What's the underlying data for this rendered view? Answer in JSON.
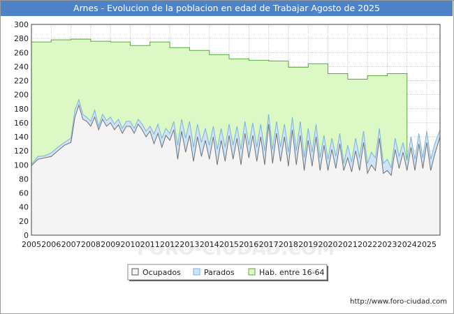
{
  "header": {
    "title": "Arnes - Evolucion de la poblacion en edad de Trabajar Agosto de 2025"
  },
  "footer": {
    "url": "http://www.foro-ciudad.com"
  },
  "watermark": {
    "text": "FORO-CIUDAD.COM"
  },
  "colors": {
    "ocupados_fill": "#f4f4f4",
    "ocupados_line": "#707070",
    "parados_fill": "#cfe3f7",
    "parados_line": "#7ab2e0",
    "hab_fill": "#dcf8c4",
    "hab_line": "#5ca83c",
    "grid": "#cccccc"
  },
  "chart_data": {
    "type": "area",
    "title": "Arnes - Evolucion de la poblacion en edad de Trabajar Agosto de 2025",
    "xlabel": "",
    "ylabel": "",
    "ylim": [
      0,
      300
    ],
    "xlim": [
      2005,
      2025.67
    ],
    "y_ticks": [
      "0",
      "20",
      "40",
      "60",
      "80",
      "100",
      "120",
      "140",
      "160",
      "180",
      "200",
      "220",
      "240",
      "260",
      "280",
      "300"
    ],
    "x_ticks": [
      "2005",
      "2006",
      "2007",
      "2008",
      "2009",
      "2010",
      "2011",
      "2012",
      "2013",
      "2014",
      "2015",
      "2016",
      "2017",
      "2018",
      "2019",
      "2020",
      "2021",
      "2022",
      "2023",
      "2024",
      "2025"
    ],
    "grid": true,
    "legend_position": "bottom",
    "legend": [
      "Ocupados",
      "Parados",
      "Hab. entre 16-64"
    ],
    "series": [
      {
        "name": "Hab. entre 16-64",
        "style": "step",
        "x": [
          2005,
          2006,
          2007,
          2008,
          2009,
          2010,
          2011,
          2012,
          2013,
          2014,
          2015,
          2016,
          2017,
          2018,
          2019,
          2020,
          2021,
          2022,
          2023,
          2024
        ],
        "values": [
          275,
          278,
          279,
          276,
          275,
          270,
          275,
          267,
          263,
          257,
          251,
          249,
          248,
          239,
          244,
          230,
          222,
          227,
          230,
          null
        ]
      },
      {
        "name": "Parados",
        "x": [
          2005.0,
          2005.33,
          2005.67,
          2006.0,
          2006.33,
          2006.67,
          2007.0,
          2007.2,
          2007.4,
          2007.6,
          2007.8,
          2008.0,
          2008.2,
          2008.4,
          2008.6,
          2008.8,
          2009.0,
          2009.2,
          2009.4,
          2009.6,
          2009.8,
          2010.0,
          2010.2,
          2010.4,
          2010.6,
          2010.8,
          2011.0,
          2011.2,
          2011.4,
          2011.6,
          2011.8,
          2012.0,
          2012.2,
          2012.4,
          2012.6,
          2012.8,
          2013.0,
          2013.2,
          2013.4,
          2013.6,
          2013.8,
          2014.0,
          2014.2,
          2014.4,
          2014.6,
          2014.8,
          2015.0,
          2015.2,
          2015.4,
          2015.6,
          2015.8,
          2016.0,
          2016.2,
          2016.4,
          2016.6,
          2016.8,
          2017.0,
          2017.2,
          2017.4,
          2017.6,
          2017.8,
          2018.0,
          2018.2,
          2018.4,
          2018.6,
          2018.8,
          2019.0,
          2019.2,
          2019.4,
          2019.6,
          2019.8,
          2020.0,
          2020.2,
          2020.4,
          2020.6,
          2020.8,
          2021.0,
          2021.2,
          2021.4,
          2021.6,
          2021.8,
          2022.0,
          2022.2,
          2022.4,
          2022.6,
          2022.8,
          2023.0,
          2023.2,
          2023.4,
          2023.6,
          2023.8,
          2024.0,
          2024.2,
          2024.4,
          2024.6,
          2024.8,
          2025.0,
          2025.2,
          2025.4,
          2025.67
        ],
        "values": [
          101,
          112,
          113,
          117,
          125,
          132,
          138,
          178,
          193,
          172,
          168,
          162,
          178,
          155,
          172,
          163,
          168,
          158,
          165,
          152,
          162,
          162,
          152,
          165,
          158,
          148,
          155,
          144,
          158,
          138,
          152,
          145,
          162,
          128,
          165,
          138,
          162,
          125,
          158,
          132,
          152,
          128,
          155,
          122,
          152,
          125,
          158,
          128,
          155,
          122,
          162,
          128,
          160,
          125,
          158,
          120,
          172,
          122,
          162,
          125,
          158,
          118,
          168,
          120,
          162,
          110,
          152,
          118,
          158,
          110,
          142,
          108,
          138,
          112,
          145,
          102,
          128,
          104,
          138,
          110,
          148,
          102,
          118,
          110,
          152,
          102,
          108,
          96,
          138,
          112,
          132,
          106,
          140,
          108,
          145,
          110,
          148,
          108,
          130,
          150
        ]
      },
      {
        "name": "Ocupados",
        "x": [
          2005.0,
          2005.33,
          2005.67,
          2006.0,
          2006.33,
          2006.67,
          2007.0,
          2007.2,
          2007.4,
          2007.6,
          2007.8,
          2008.0,
          2008.2,
          2008.4,
          2008.6,
          2008.8,
          2009.0,
          2009.2,
          2009.4,
          2009.6,
          2009.8,
          2010.0,
          2010.2,
          2010.4,
          2010.6,
          2010.8,
          2011.0,
          2011.2,
          2011.4,
          2011.6,
          2011.8,
          2012.0,
          2012.2,
          2012.4,
          2012.6,
          2012.8,
          2013.0,
          2013.2,
          2013.4,
          2013.6,
          2013.8,
          2014.0,
          2014.2,
          2014.4,
          2014.6,
          2014.8,
          2015.0,
          2015.2,
          2015.4,
          2015.6,
          2015.8,
          2016.0,
          2016.2,
          2016.4,
          2016.6,
          2016.8,
          2017.0,
          2017.2,
          2017.4,
          2017.6,
          2017.8,
          2018.0,
          2018.2,
          2018.4,
          2018.6,
          2018.8,
          2019.0,
          2019.2,
          2019.4,
          2019.6,
          2019.8,
          2020.0,
          2020.2,
          2020.4,
          2020.6,
          2020.8,
          2021.0,
          2021.2,
          2021.4,
          2021.6,
          2021.8,
          2022.0,
          2022.2,
          2022.4,
          2022.6,
          2022.8,
          2023.0,
          2023.2,
          2023.4,
          2023.6,
          2023.8,
          2024.0,
          2024.2,
          2024.4,
          2024.6,
          2024.8,
          2025.0,
          2025.2,
          2025.4,
          2025.67
        ],
        "values": [
          99,
          108,
          110,
          112,
          120,
          128,
          132,
          168,
          185,
          165,
          162,
          155,
          168,
          150,
          165,
          155,
          160,
          150,
          157,
          145,
          155,
          155,
          145,
          158,
          150,
          140,
          148,
          130,
          145,
          125,
          142,
          135,
          150,
          108,
          148,
          118,
          142,
          105,
          140,
          112,
          135,
          108,
          140,
          100,
          135,
          105,
          142,
          108,
          138,
          100,
          145,
          110,
          142,
          105,
          140,
          100,
          158,
          102,
          145,
          105,
          140,
          98,
          150,
          100,
          142,
          92,
          135,
          98,
          140,
          92,
          128,
          92,
          122,
          95,
          130,
          92,
          110,
          90,
          120,
          92,
          132,
          88,
          100,
          92,
          138,
          88,
          92,
          85,
          122,
          95,
          118,
          92,
          125,
          92,
          130,
          95,
          132,
          92,
          115,
          140
        ]
      }
    ]
  }
}
